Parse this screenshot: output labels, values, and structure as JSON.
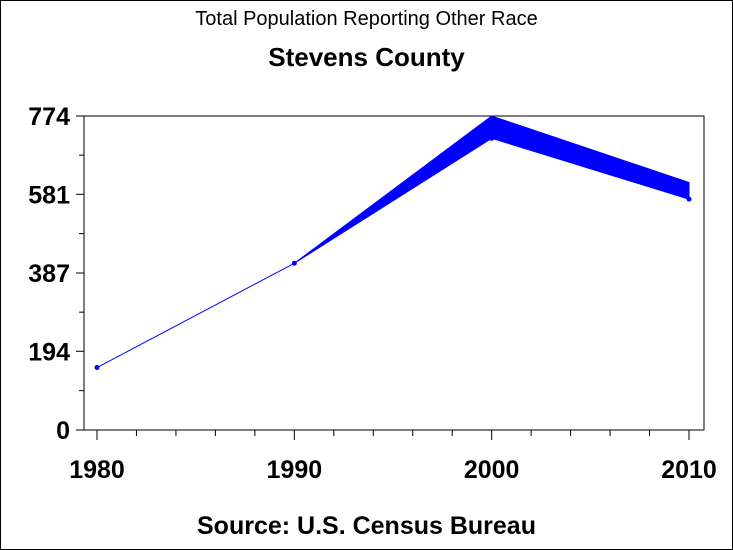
{
  "chart_data": {
    "type": "line",
    "title": "Total Population Reporting Other Race",
    "subtitle": "Stevens County",
    "footnote": "Source: U.S. Census Bureau",
    "xlabel": "",
    "ylabel": "",
    "x": [
      1980,
      1990,
      2000,
      2010
    ],
    "x_ticks": [
      "1980",
      "1990",
      "2000",
      "2010"
    ],
    "y_ticks": [
      "0",
      "194",
      "387",
      "581",
      "774"
    ],
    "ylim": [
      0,
      774
    ],
    "xlim": [
      1979.3,
      2010.8
    ],
    "series": [
      {
        "name": "Other Race",
        "values": [
          154,
          411,
          745,
          590
        ],
        "lower": [
          154,
          411,
          719,
          569
        ],
        "upper": [
          154,
          411,
          774,
          610
        ],
        "color": "#0000ff"
      }
    ],
    "grid": false,
    "legend": "none"
  }
}
